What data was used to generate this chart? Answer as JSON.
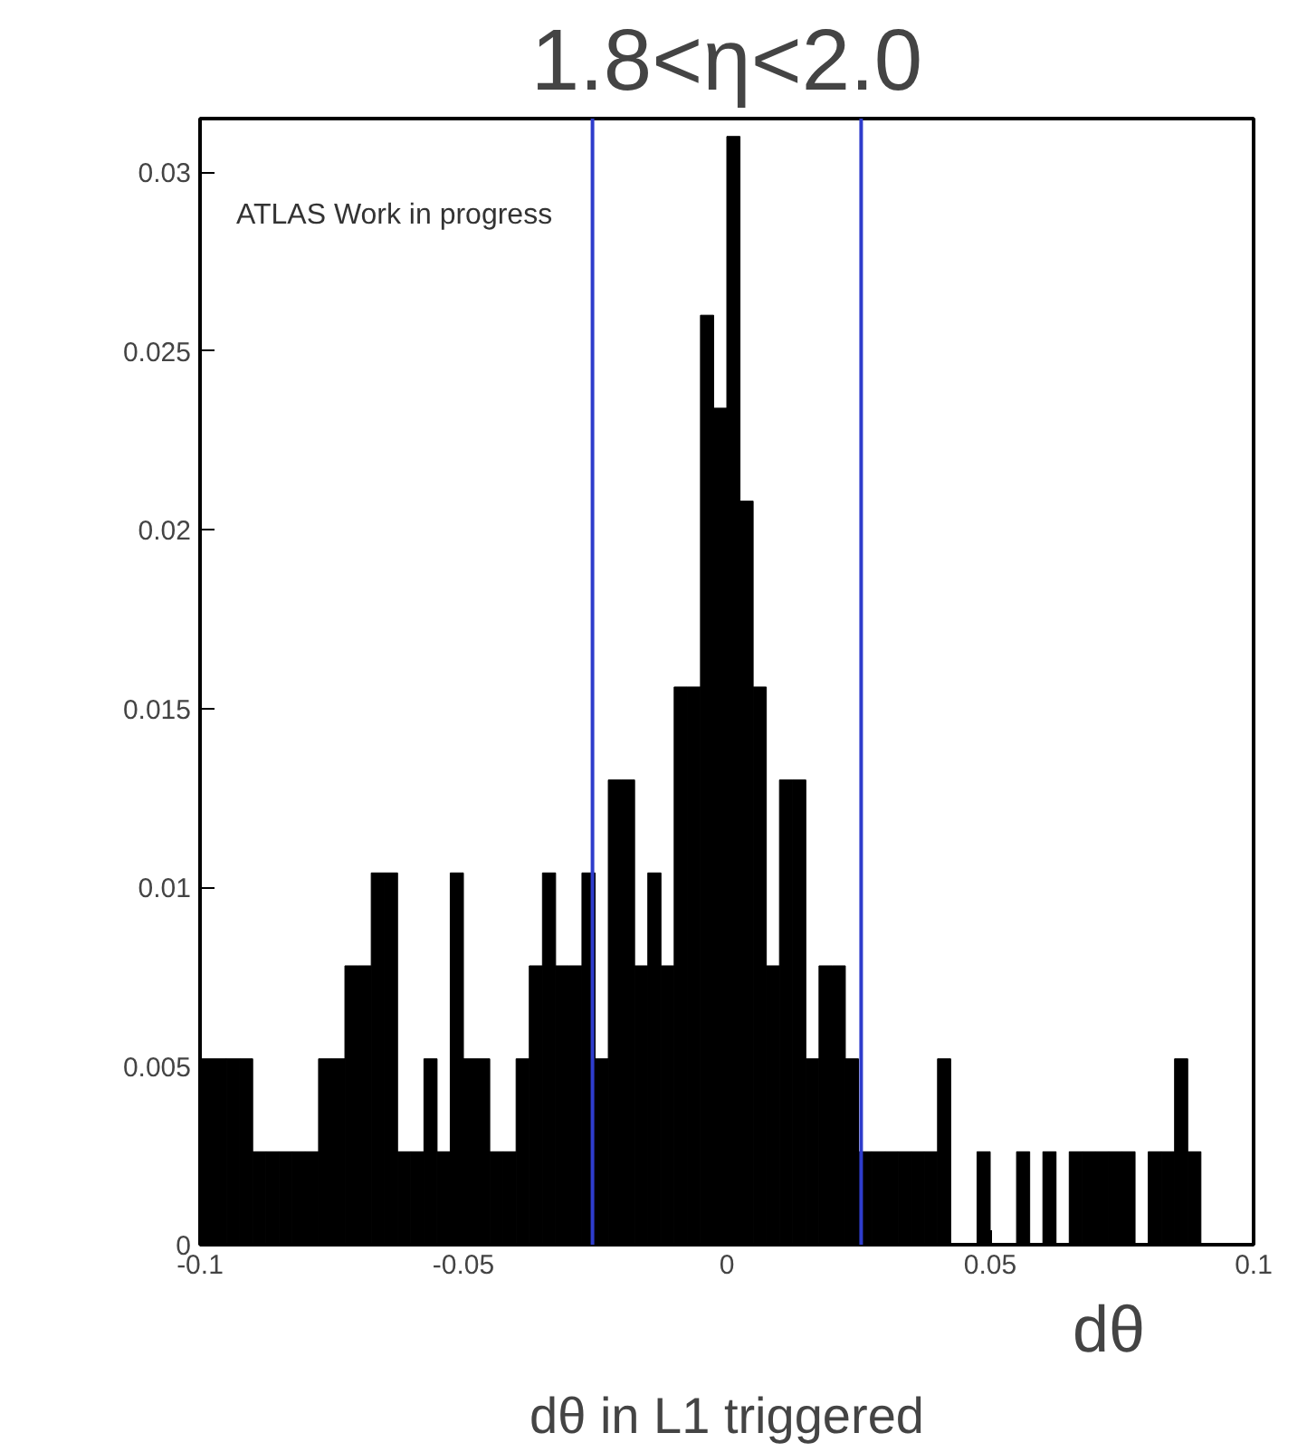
{
  "chart_data": {
    "type": "histogram",
    "title": "1.8<η<2.0",
    "xlabel": "dθ",
    "annotations": [
      "ATLAS Work in progress",
      "dθ in L1 triggered"
    ],
    "bins": [
      -0.1,
      -0.0975,
      -0.095,
      -0.0925,
      -0.09,
      -0.0875,
      -0.085,
      -0.0825,
      -0.08,
      -0.0775,
      -0.075,
      -0.0725,
      -0.07,
      -0.0675,
      -0.065,
      -0.0625,
      -0.06,
      -0.0575,
      -0.055,
      -0.0525,
      -0.05,
      -0.0475,
      -0.045,
      -0.0425,
      -0.04,
      -0.0375,
      -0.035,
      -0.0325,
      -0.03,
      -0.0275,
      -0.025,
      -0.0225,
      -0.02,
      -0.0175,
      -0.015,
      -0.0125,
      -0.01,
      -0.0075,
      -0.005,
      -0.0025,
      0,
      0.0025,
      0.005,
      0.0075,
      0.01,
      0.0125,
      0.015,
      0.0175,
      0.02,
      0.0225,
      0.025,
      0.0275,
      0.03,
      0.0325,
      0.035,
      0.0375,
      0.04,
      0.0425,
      0.045,
      0.0475,
      0.05,
      0.0525,
      0.055,
      0.0575,
      0.06,
      0.0625,
      0.065,
      0.0675,
      0.07,
      0.0725,
      0.075,
      0.0775,
      0.08,
      0.0825,
      0.085,
      0.0875,
      0.09,
      0.0925,
      0.095,
      0.0975,
      0.1
    ],
    "values": [
      0.0052,
      0.0052,
      0.0052,
      0.0052,
      0.0026,
      0.0026,
      0.0026,
      0.0026,
      0.0026,
      0.0052,
      0.0052,
      0.0078,
      0.0078,
      0.0104,
      0.0104,
      0.0026,
      0.0026,
      0.0052,
      0.0026,
      0.0104,
      0.0052,
      0.0052,
      0.0026,
      0.0026,
      0.0052,
      0.0078,
      0.0104,
      0.0078,
      0.0078,
      0.0104,
      0.0052,
      0.013,
      0.013,
      0.0078,
      0.0104,
      0.0078,
      0.0156,
      0.0156,
      0.026,
      0.0234,
      0.031,
      0.0208,
      0.0156,
      0.0078,
      0.013,
      0.013,
      0.0052,
      0.0078,
      0.0078,
      0.0052,
      0.0026,
      0.0026,
      0.0026,
      0.0026,
      0.0026,
      0.0026,
      0.0052,
      0,
      0,
      0.0026,
      0,
      0,
      0.0026,
      0,
      0.0026,
      0,
      0.0026,
      0.0026,
      0.0026,
      0.0026,
      0.0026,
      0,
      0.0026,
      0.0026,
      0.0052,
      0.0026,
      0,
      0,
      0,
      0
    ],
    "color": "#000000",
    "xlim": [
      -0.1,
      0.1
    ],
    "ylim": [
      0,
      0.0315
    ],
    "xticks": [
      -0.1,
      -0.05,
      0,
      0.05,
      0.1
    ],
    "yticks": [
      0,
      0.005,
      0.01,
      0.015,
      0.02,
      0.025,
      0.03
    ],
    "ref_lines": [
      {
        "axis": "x",
        "value": -0.0255,
        "color": "#2e3ccc"
      },
      {
        "axis": "x",
        "value": 0.0255,
        "color": "#2e3ccc"
      }
    ],
    "grid": false
  }
}
